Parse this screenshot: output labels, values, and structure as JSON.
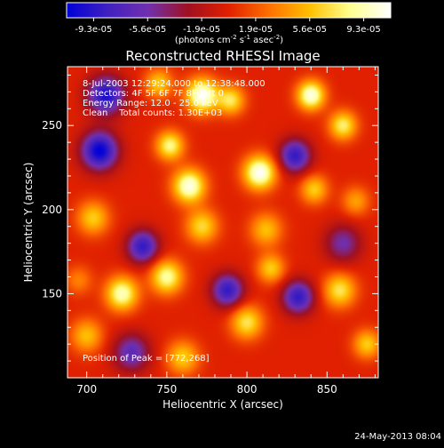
{
  "chart_data": {
    "type": "heatmap",
    "title": "Reconstructed RHESSI Image",
    "xlabel": "Heliocentric X (arcsec)",
    "ylabel": "Heliocentric Y (arcsec)",
    "xlim": [
      688,
      882
    ],
    "ylim": [
      100,
      285
    ],
    "x_ticks": [
      700,
      750,
      800,
      850
    ],
    "y_ticks": [
      150,
      200,
      250
    ],
    "colorbar": {
      "min": -9.3e-05,
      "max": 9.3e-05,
      "tick_labels": [
        "-9.3e-05",
        "-5.6e-05",
        "-1.9e-05",
        "1.9e-05",
        "5.6e-05",
        "9.3e-05"
      ],
      "units_main": "(photons cm",
      "units_sup1": "-2",
      "units_mid1": " s",
      "units_sup2": "-1",
      "units_mid2": " asec",
      "units_sup3": "-2",
      "units_end": ")",
      "stops": [
        "#0000d8",
        "#4020c0",
        "#7030b0",
        "#a01020",
        "#e02000",
        "#ff7000",
        "#ffc000",
        "#ffff90",
        "#ffffff"
      ]
    },
    "annotations": [
      "8-Jul-2003 12:29:24.000 to 12:38:48.000",
      "Detectors: 4F 5F 6F 7F 8F, Att 0",
      "Energy Range: 12.0 - 25.0 keV",
      "Clean    Total counts: 1.30E+03"
    ],
    "peak_label": "Position of Peak = [772,268]",
    "blobs": [
      {
        "x": 708,
        "y": 235,
        "v": -1.0,
        "s": 8
      },
      {
        "x": 712,
        "y": 268,
        "v": -0.9,
        "s": 8
      },
      {
        "x": 735,
        "y": 178,
        "v": -0.8,
        "s": 7
      },
      {
        "x": 788,
        "y": 152,
        "v": -0.8,
        "s": 7
      },
      {
        "x": 832,
        "y": 148,
        "v": -0.8,
        "s": 7
      },
      {
        "x": 830,
        "y": 232,
        "v": -0.8,
        "s": 7
      },
      {
        "x": 728,
        "y": 115,
        "v": -0.6,
        "s": 8
      },
      {
        "x": 860,
        "y": 180,
        "v": -0.5,
        "s": 8
      },
      {
        "x": 812,
        "y": 188,
        "v": 0.5,
        "s": 7
      },
      {
        "x": 772,
        "y": 190,
        "v": 0.6,
        "s": 7
      },
      {
        "x": 808,
        "y": 222,
        "v": 1.0,
        "s": 7
      },
      {
        "x": 764,
        "y": 214,
        "v": 0.95,
        "s": 7
      },
      {
        "x": 772,
        "y": 268,
        "v": 1.0,
        "s": 7
      },
      {
        "x": 840,
        "y": 268,
        "v": 0.95,
        "s": 6
      },
      {
        "x": 752,
        "y": 238,
        "v": 0.75,
        "s": 6
      },
      {
        "x": 722,
        "y": 150,
        "v": 0.85,
        "s": 7
      },
      {
        "x": 790,
        "y": 265,
        "v": 0.65,
        "s": 6
      },
      {
        "x": 860,
        "y": 250,
        "v": 0.7,
        "s": 6
      },
      {
        "x": 704,
        "y": 195,
        "v": 0.55,
        "s": 7
      },
      {
        "x": 750,
        "y": 160,
        "v": 0.8,
        "s": 7
      },
      {
        "x": 800,
        "y": 133,
        "v": 0.65,
        "s": 7
      },
      {
        "x": 815,
        "y": 165,
        "v": 0.55,
        "s": 6
      },
      {
        "x": 858,
        "y": 152,
        "v": 0.65,
        "s": 7
      },
      {
        "x": 700,
        "y": 125,
        "v": 0.5,
        "s": 7
      },
      {
        "x": 760,
        "y": 112,
        "v": 0.55,
        "s": 7
      },
      {
        "x": 875,
        "y": 120,
        "v": 0.55,
        "s": 6
      },
      {
        "x": 842,
        "y": 212,
        "v": 0.55,
        "s": 6
      },
      {
        "x": 745,
        "y": 275,
        "v": 0.55,
        "s": 6
      },
      {
        "x": 868,
        "y": 205,
        "v": 0.4,
        "s": 6
      },
      {
        "x": 695,
        "y": 158,
        "v": 0.3,
        "s": 6
      }
    ]
  },
  "footer_timestamp": "24-May-2013 08:04"
}
